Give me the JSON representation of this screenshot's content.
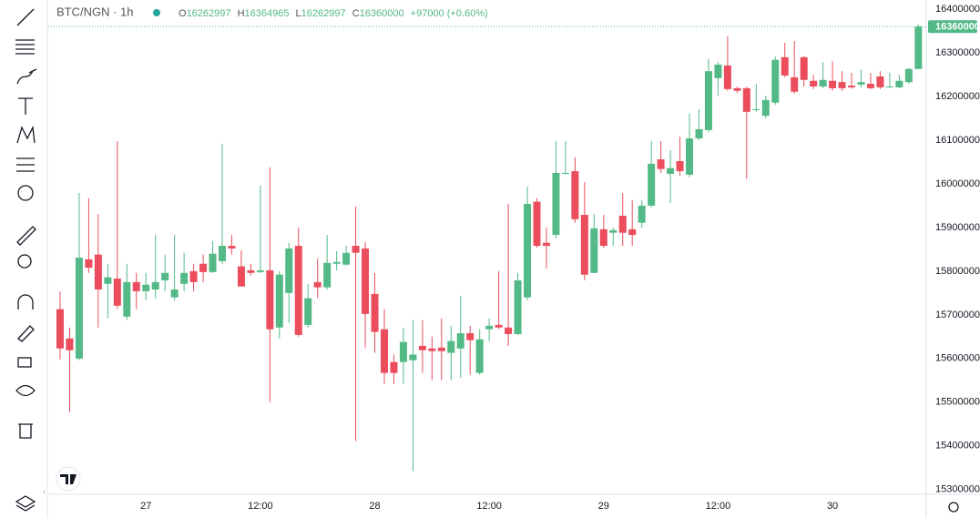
{
  "header": {
    "symbol": "BTC/NGN · 1h",
    "labels": [
      "O",
      "H",
      "L",
      "C"
    ],
    "change": "+97000 (+0.60%)"
  },
  "chart_data": {
    "type": "candlestick",
    "categories": [
      null,
      null,
      null,
      null,
      null,
      null,
      null,
      null,
      null,
      "27",
      null,
      null,
      null,
      null,
      null,
      null,
      null,
      null,
      null,
      null,
      null,
      "12:00",
      null,
      null,
      null,
      null,
      null,
      null,
      null,
      null,
      null,
      null,
      null,
      "28",
      null,
      null,
      null,
      null,
      null,
      null,
      null,
      null,
      null,
      null,
      null,
      "12:00",
      null,
      null,
      null,
      null,
      null,
      null,
      null,
      null,
      null,
      null,
      null,
      "29",
      null,
      null,
      null,
      null,
      null,
      null,
      null,
      null,
      null,
      null,
      null,
      "12:00",
      null,
      null,
      null,
      null,
      null,
      null,
      null,
      null,
      null,
      null,
      null,
      "30",
      null,
      null,
      null,
      null,
      null,
      null,
      null,
      null,
      null
    ],
    "open": [
      15713000,
      15646000,
      15600000,
      15827000,
      15838000,
      15771000,
      15783000,
      15696000,
      15775000,
      15754000,
      15758000,
      15779000,
      15740000,
      15771000,
      15800000,
      15817000,
      15798000,
      15823000,
      15858000,
      15811000,
      15802000,
      15798000,
      15802000,
      15671000,
      15750000,
      15858000,
      15677000,
      15775000,
      15763000,
      15817000,
      15815000,
      15858000,
      15852000,
      15748000,
      15667000,
      15592000,
      15592000,
      15596000,
      15629000,
      15623000,
      15625000,
      15613000,
      15623000,
      15658000,
      15567000,
      15667000,
      15677000,
      15671000,
      15656000,
      15740000,
      15959000,
      15865000,
      15883000,
      16023000,
      16029000,
      15929000,
      15796000,
      15896000,
      15888000,
      15927000,
      15896000,
      15911000,
      15950000,
      16056000,
      16023000,
      16052000,
      16021000,
      16104000,
      16123000,
      16242000,
      16271000,
      16219000,
      16219000,
      16169000,
      16156000,
      16186000,
      16290000,
      16244000,
      16290000,
      16236000,
      16223000,
      16236000,
      16233000,
      16225000,
      16227000,
      16229000,
      16246000,
      16221000,
      16221000,
      16233000,
      16262997
    ],
    "high": [
      15754000,
      15671000,
      15979000,
      15967000,
      15931000,
      15817000,
      16098000,
      15817000,
      15796000,
      15796000,
      15883000,
      15838000,
      15883000,
      15842000,
      15817000,
      15838000,
      15869000,
      16092000,
      15883000,
      15848000,
      15817000,
      15996000,
      16038000,
      15800000,
      15865000,
      15900000,
      15771000,
      15829000,
      15883000,
      15846000,
      15858000,
      15948000,
      15867000,
      15796000,
      15713000,
      15609000,
      15671000,
      15688000,
      15688000,
      15650000,
      15692000,
      15675000,
      15744000,
      15675000,
      15667000,
      15692000,
      15800000,
      15954000,
      15796000,
      15994000,
      15967000,
      15900000,
      16098000,
      16098000,
      16061000,
      16004000,
      15931000,
      15929000,
      15900000,
      15979000,
      15963000,
      15963000,
      16098000,
      16098000,
      16077000,
      16108000,
      16161000,
      16171000,
      16286000,
      16279000,
      16338000,
      16223000,
      16223000,
      16229000,
      16202000,
      16292000,
      16323000,
      16327000,
      16292000,
      16250000,
      16279000,
      16281000,
      16258000,
      16254000,
      16261000,
      16254000,
      16258000,
      16254000,
      16250000,
      16265000,
      16364965
    ],
    "low": [
      15598000,
      15477000,
      15596000,
      15796000,
      15671000,
      15692000,
      15713000,
      15688000,
      15713000,
      15733000,
      15738000,
      15754000,
      15733000,
      15754000,
      15754000,
      15775000,
      15796000,
      15817000,
      15838000,
      15765000,
      15790000,
      15796000,
      15500000,
      15646000,
      15681000,
      15650000,
      15671000,
      15738000,
      15758000,
      15802000,
      15813000,
      15411000,
      15625000,
      15613000,
      15542000,
      15542000,
      15542000,
      15342000,
      15567000,
      15550000,
      15550000,
      15550000,
      15556000,
      15563000,
      15563000,
      15640000,
      15667000,
      15629000,
      15654000,
      15733000,
      15854000,
      15806000,
      15875000,
      16021000,
      15911000,
      15779000,
      15796000,
      15854000,
      15858000,
      15858000,
      15858000,
      15900000,
      15946000,
      16025000,
      15956000,
      16019000,
      16015000,
      16100000,
      16119000,
      16202000,
      16213000,
      16208000,
      16011000,
      16165000,
      16150000,
      16181000,
      16244000,
      16206000,
      16223000,
      16217000,
      16219000,
      16213000,
      16213000,
      16217000,
      16221000,
      16217000,
      16217000,
      16219000,
      16219000,
      16229000,
      16262997
    ],
    "close": [
      15623000,
      15619000,
      15831000,
      15808000,
      15758000,
      15786000,
      15721000,
      15775000,
      15754000,
      15769000,
      15775000,
      15796000,
      15758000,
      15796000,
      15775000,
      15798000,
      15840000,
      15858000,
      15852000,
      15765000,
      15796000,
      15802000,
      15667000,
      15792000,
      15852000,
      15654000,
      15738000,
      15763000,
      15819000,
      15821000,
      15842000,
      15842000,
      15702000,
      15661000,
      15567000,
      15567000,
      15638000,
      15609000,
      15619000,
      15617000,
      15617000,
      15640000,
      15658000,
      15642000,
      15644000,
      15675000,
      15671000,
      15656000,
      15779000,
      15954000,
      15858000,
      15858000,
      16025000,
      16025000,
      15919000,
      15792000,
      15898000,
      15858000,
      15894000,
      15888000,
      15883000,
      15950000,
      16046000,
      16034000,
      16036000,
      16029000,
      16104000,
      16125000,
      16258000,
      16273000,
      16217000,
      16213000,
      16165000,
      16171000,
      16192000,
      16284000,
      16248000,
      16211000,
      16238000,
      16223000,
      16238000,
      16219000,
      16219000,
      16221000,
      16233000,
      16219000,
      16221000,
      16223000,
      16236000,
      16263000,
      16360000
    ],
    "up_color": "#53b987",
    "down_color": "#eb4d5c",
    "ylim": [
      15289000,
      16421000
    ],
    "yticks": [
      15300000,
      15400000,
      15500000,
      15600000,
      15700000,
      15800000,
      15900000,
      16000000,
      16100000,
      16200000,
      16300000,
      16400000
    ],
    "grid": false
  }
}
